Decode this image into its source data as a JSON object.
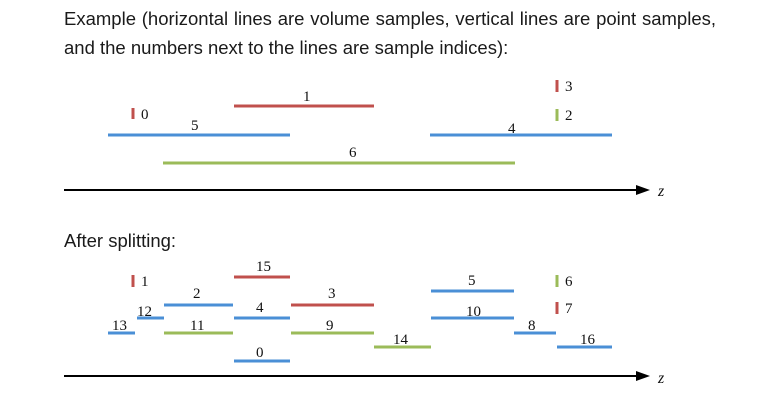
{
  "text": {
    "intro": "Example (horizontal lines are volume samples, vertical lines are point samples, and the numbers next to the lines are sample indices):",
    "after": "After splitting:"
  },
  "colors": {
    "blue": "#4a8fd6",
    "red": "#c0504d",
    "green": "#9bbb59",
    "axis": "#000000"
  },
  "axis_label": "z",
  "before": {
    "volume_samples": [
      {
        "index": "1",
        "color": "red"
      },
      {
        "index": "5",
        "color": "blue"
      },
      {
        "index": "4",
        "color": "blue"
      },
      {
        "index": "6",
        "color": "green"
      }
    ],
    "point_samples": [
      {
        "index": "0",
        "color": "red"
      },
      {
        "index": "3",
        "color": "red"
      },
      {
        "index": "2",
        "color": "green"
      }
    ]
  },
  "after": {
    "volume_samples": [
      {
        "index": "15",
        "color": "red"
      },
      {
        "index": "2",
        "color": "blue"
      },
      {
        "index": "12",
        "color": "blue"
      },
      {
        "index": "4",
        "color": "blue"
      },
      {
        "index": "3",
        "color": "red"
      },
      {
        "index": "5",
        "color": "blue"
      },
      {
        "index": "13",
        "color": "blue"
      },
      {
        "index": "11",
        "color": "green"
      },
      {
        "index": "9",
        "color": "green"
      },
      {
        "index": "10",
        "color": "blue"
      },
      {
        "index": "8",
        "color": "blue"
      },
      {
        "index": "16",
        "color": "blue"
      },
      {
        "index": "14",
        "color": "green"
      },
      {
        "index": "0",
        "color": "blue"
      }
    ],
    "point_samples": [
      {
        "index": "1",
        "color": "red"
      },
      {
        "index": "6",
        "color": "green"
      },
      {
        "index": "7",
        "color": "red"
      }
    ]
  }
}
